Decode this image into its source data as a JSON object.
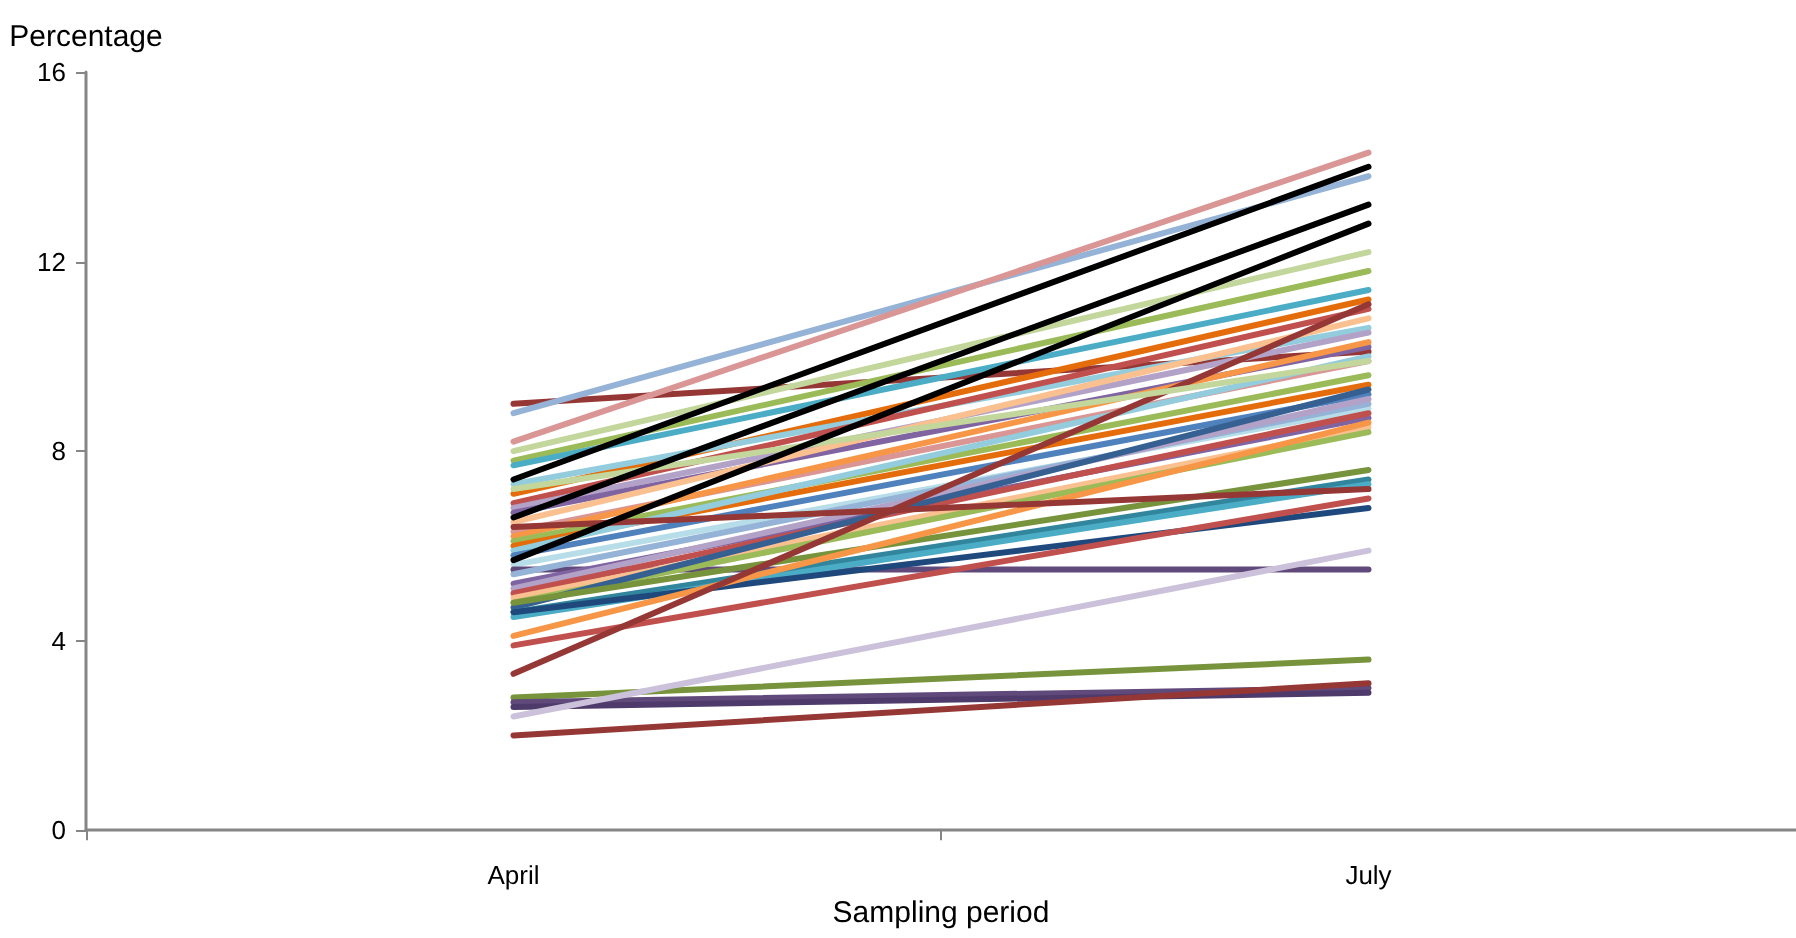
{
  "chart_data": {
    "type": "line",
    "xlabel": "Sampling period",
    "ylabel": "Percentage",
    "categories": [
      "April",
      "July"
    ],
    "ylim": [
      0,
      16
    ],
    "yticks": [
      0,
      4,
      8,
      12,
      16
    ],
    "marker": "none",
    "line_style": "solid",
    "series": [
      {
        "color": "#953735",
        "values": [
          9.0,
          10.1
        ]
      },
      {
        "color": "#95b3d7",
        "values": [
          8.8,
          13.8
        ]
      },
      {
        "color": "#d99694",
        "values": [
          8.2,
          14.3
        ]
      },
      {
        "color": "#c3d69b",
        "values": [
          8.0,
          12.2
        ]
      },
      {
        "color": "#9bbb59",
        "values": [
          7.8,
          11.8
        ]
      },
      {
        "color": "#4bacc6",
        "values": [
          7.7,
          11.4
        ]
      },
      {
        "color": "#e46c0a",
        "values": [
          7.1,
          11.2
        ]
      },
      {
        "color": "#93cddd",
        "values": [
          7.3,
          10.6
        ]
      },
      {
        "color": "#c0504d",
        "values": [
          6.9,
          11.0
        ]
      },
      {
        "color": "#b3a2c7",
        "values": [
          6.8,
          10.5
        ]
      },
      {
        "color": "#8064a2",
        "values": [
          6.7,
          10.2
        ]
      },
      {
        "color": "#fac090",
        "values": [
          6.5,
          10.8
        ]
      },
      {
        "color": "#d99694",
        "values": [
          6.3,
          9.9
        ]
      },
      {
        "color": "#f79646",
        "values": [
          6.2,
          10.3
        ]
      },
      {
        "color": "#9bbb59",
        "values": [
          6.1,
          9.6
        ]
      },
      {
        "color": "#e46c0a",
        "values": [
          6.0,
          9.4
        ]
      },
      {
        "color": "#93cddd",
        "values": [
          5.9,
          10.0
        ]
      },
      {
        "color": "#4f81bd",
        "values": [
          5.8,
          9.2
        ]
      },
      {
        "color": "#b7dee8",
        "values": [
          5.6,
          8.9
        ]
      },
      {
        "color": "#604a7b",
        "values": [
          5.5,
          5.5
        ]
      },
      {
        "color": "#95b3d7",
        "values": [
          5.4,
          9.0
        ]
      },
      {
        "color": "#8064a2",
        "values": [
          5.2,
          8.7
        ]
      },
      {
        "color": "#b3a2c7",
        "values": [
          5.1,
          9.1
        ]
      },
      {
        "color": "#c0504d",
        "values": [
          5.0,
          8.8
        ]
      },
      {
        "color": "#fac090",
        "values": [
          4.9,
          8.5
        ]
      },
      {
        "color": "#9bbb59",
        "values": [
          4.8,
          8.4
        ]
      },
      {
        "color": "#376092",
        "values": [
          4.7,
          9.3
        ]
      },
      {
        "color": "#77933c",
        "values": [
          4.8,
          7.6
        ]
      },
      {
        "color": "#31859c",
        "values": [
          4.6,
          7.4
        ]
      },
      {
        "color": "#4bacc6",
        "values": [
          4.5,
          7.3
        ]
      },
      {
        "color": "#1f497d",
        "values": [
          4.6,
          6.8
        ]
      },
      {
        "color": "#f79646",
        "values": [
          4.1,
          8.6
        ]
      },
      {
        "color": "#c0504d",
        "values": [
          3.9,
          7.0
        ]
      },
      {
        "color": "#953735",
        "values": [
          3.3,
          11.1
        ]
      },
      {
        "color": "#77933c",
        "values": [
          2.8,
          3.6
        ]
      },
      {
        "color": "#604a7b",
        "values": [
          2.7,
          3.0
        ]
      },
      {
        "color": "#4f3b6b",
        "values": [
          2.6,
          2.9
        ]
      },
      {
        "color": "#ccc1da",
        "values": [
          2.4,
          5.9
        ]
      },
      {
        "color": "#953735",
        "values": [
          2.0,
          3.1
        ]
      },
      {
        "color": "#c3d69b",
        "values": [
          7.2,
          9.9
        ]
      },
      {
        "color": "#953735",
        "values": [
          6.4,
          7.2
        ]
      },
      {
        "color": "#000000",
        "values": [
          7.4,
          14.0
        ]
      },
      {
        "color": "#000000",
        "values": [
          6.6,
          13.2
        ]
      },
      {
        "color": "#000000",
        "values": [
          5.7,
          12.8
        ]
      }
    ]
  }
}
